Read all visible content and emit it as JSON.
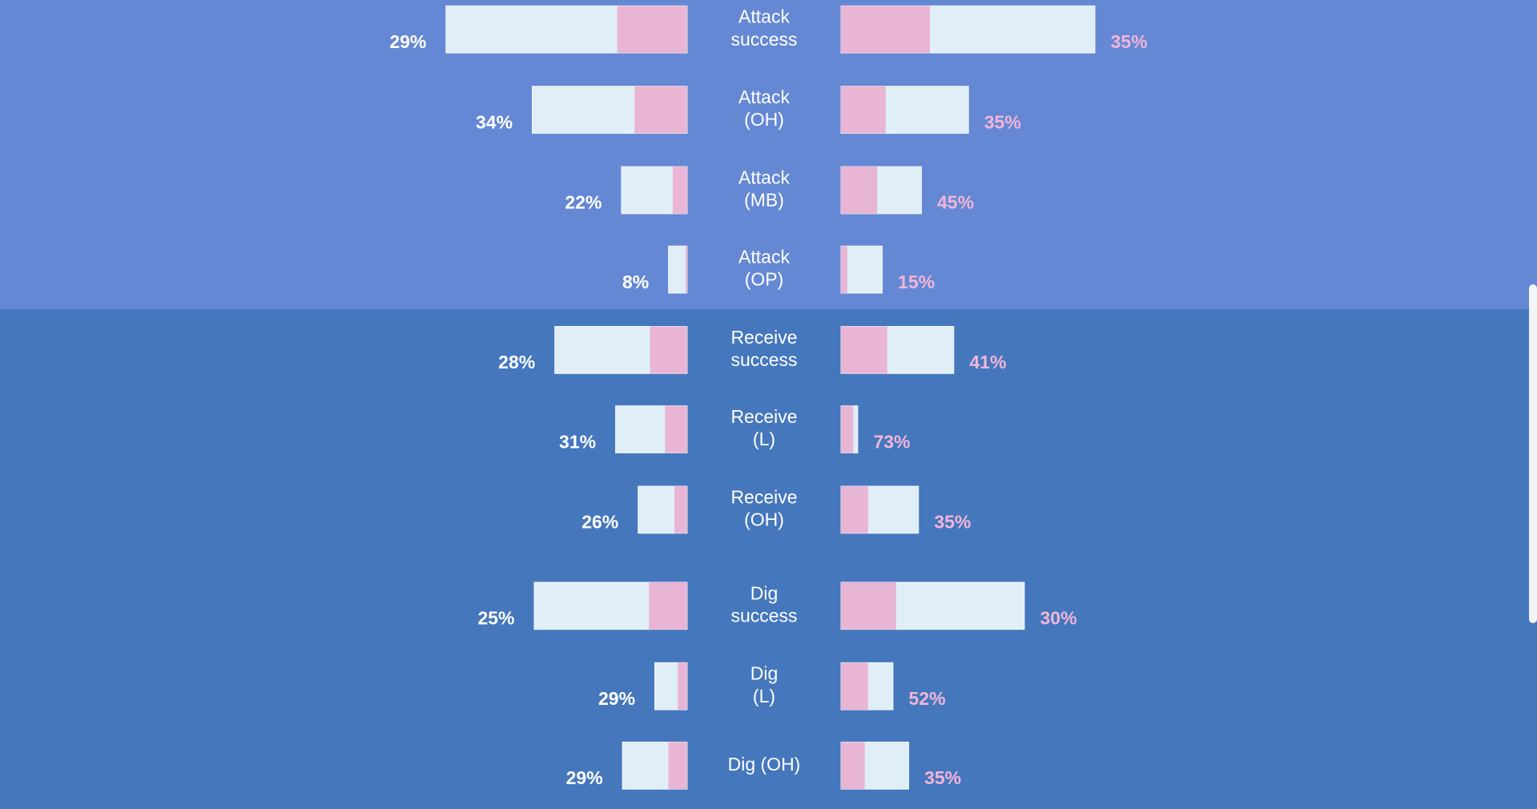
{
  "rows": [
    {
      "label": [
        "Attack",
        "success"
      ],
      "left": {
        "value": 29,
        "value_label": "29%",
        "total": 246
      },
      "right": {
        "value": 35,
        "value_label": "35%",
        "total": 259
      }
    },
    {
      "label": [
        "Attack",
        "(OH)"
      ],
      "left": {
        "value": 34,
        "value_label": "34%",
        "total": 158
      },
      "right": {
        "value": 35,
        "value_label": "35%",
        "total": 130
      }
    },
    {
      "label": [
        "Attack",
        "(MB)"
      ],
      "left": {
        "value": 22,
        "value_label": "22%",
        "total": 67
      },
      "right": {
        "value": 45,
        "value_label": "45%",
        "total": 82
      }
    },
    {
      "label": [
        "Attack",
        "(OP)"
      ],
      "left": {
        "value": 8,
        "value_label": "8%",
        "total": 19
      },
      "right": {
        "value": 15,
        "value_label": "15%",
        "total": 42
      }
    },
    {
      "label": [
        "Receive",
        "success"
      ],
      "left": {
        "value": 28,
        "value_label": "28%",
        "total": 135
      },
      "right": {
        "value": 41,
        "value_label": "41%",
        "total": 115
      }
    },
    {
      "label": [
        "Receive",
        "(L)"
      ],
      "left": {
        "value": 31,
        "value_label": "31%",
        "total": 73
      },
      "right": {
        "value": 73,
        "value_label": "73%",
        "total": 17
      }
    },
    {
      "label": [
        "Receive",
        "(OH)"
      ],
      "left": {
        "value": 26,
        "value_label": "26%",
        "total": 50
      },
      "right": {
        "value": 35,
        "value_label": "35%",
        "total": 79
      }
    },
    {
      "label": [
        "Dig",
        "success"
      ],
      "left": {
        "value": 25,
        "value_label": "25%",
        "total": 156
      },
      "right": {
        "value": 30,
        "value_label": "30%",
        "total": 187
      }
    },
    {
      "label": [
        "Dig",
        "(L)"
      ],
      "left": {
        "value": 29,
        "value_label": "29%",
        "total": 33
      },
      "right": {
        "value": 52,
        "value_label": "52%",
        "total": 53
      }
    },
    {
      "label": [
        "Dig (OH)"
      ],
      "left": {
        "value": 29,
        "value_label": "29%",
        "total": 66
      },
      "right": {
        "value": 35,
        "value_label": "35%",
        "total": 69
      }
    }
  ]
}
